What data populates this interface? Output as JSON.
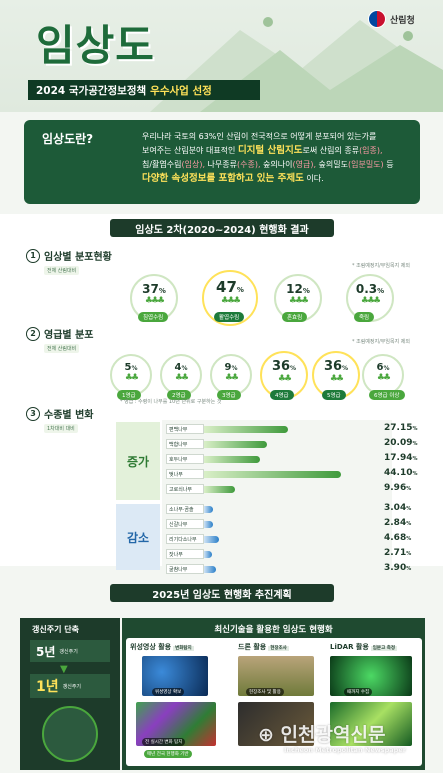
{
  "header": {
    "title": "임상도",
    "agency": "산림청",
    "subtitle_pre": "2024 국가공간정보정책",
    "subtitle_hl": "우수사업 선정"
  },
  "intro": {
    "question": "임상도란?",
    "l1": "우리나라 국토의 63%인 산림이 전국적으로 어떻게 분포되어 있는가를",
    "l2a": "보여주는 산림분야 대표적인",
    "l2b": "디지털 산림지도",
    "l2c": "로써 산림의 종류",
    "l2d": "(임종),",
    "l3a": "침/활엽수림",
    "l3b": "(임상),",
    "l3c": " 나무종류",
    "l3d": "(수종),",
    "l3e": " 숲의나이",
    "l3f": "(영급),",
    "l3g": " 숲의밀도",
    "l3h": "(임분밀도)",
    "l3i": " 등",
    "l4a": "다양한 속성정보를 포함하고 있는 주제도",
    "l4b": "이다."
  },
  "results": {
    "band": "임상도 2차(2020~2024) 현행화 결과"
  },
  "s1": {
    "num": "1",
    "title": "임상별 분포현황",
    "sub": "전체 산림대비",
    "note": "* 조림예정지/무임목지 제외",
    "items": [
      {
        "pct": "37",
        "unit": "%",
        "label": "침엽수림",
        "hi": false
      },
      {
        "pct": "47",
        "unit": "%",
        "label": "활엽수림",
        "hi": true
      },
      {
        "pct": "12",
        "unit": "%",
        "label": "혼효림",
        "hi": false
      },
      {
        "pct": "0.3",
        "unit": "%",
        "label": "죽림",
        "hi": false
      }
    ]
  },
  "s2": {
    "num": "2",
    "title": "영급별 분포",
    "sub": "전체 산림대비",
    "note": "* 조림예정지/무임목지 제외",
    "footnote": "* 영급 : 수령이 나무를 10년 단위로 구분하는 것",
    "items": [
      {
        "pct": "5",
        "unit": "%",
        "label": "1영급",
        "hi": false
      },
      {
        "pct": "4",
        "unit": "%",
        "label": "2영급",
        "hi": false
      },
      {
        "pct": "9",
        "unit": "%",
        "label": "3영급",
        "hi": false
      },
      {
        "pct": "36",
        "unit": "%",
        "label": "4영급",
        "hi": true
      },
      {
        "pct": "36",
        "unit": "%",
        "label": "5영급",
        "hi": true
      },
      {
        "pct": "6",
        "unit": "%",
        "label": "6영급 이상",
        "hi": false
      }
    ]
  },
  "s3": {
    "num": "3",
    "title": "수종별 변화",
    "sub": "1차대비 대비",
    "inc": "증가",
    "dec": "감소",
    "increase": [
      {
        "name": "편백나무",
        "value": 27.15,
        "text": "27.15",
        "unit": "%"
      },
      {
        "name": "백합나무",
        "value": 20.09,
        "text": "20.09",
        "unit": "%"
      },
      {
        "name": "호두나무",
        "value": 17.94,
        "text": "17.94",
        "unit": "%"
      },
      {
        "name": "벚나무",
        "value": 44.1,
        "text": "44.10",
        "unit": "%"
      },
      {
        "name": "고로쇠나무",
        "value": 9.96,
        "text": "9.96",
        "unit": "%"
      }
    ],
    "decrease": [
      {
        "name": "소나무·곰솔",
        "value": 3.04,
        "text": "3.04",
        "unit": "%"
      },
      {
        "name": "신갈나무",
        "value": 2.84,
        "text": "2.84",
        "unit": "%"
      },
      {
        "name": "리기다소나무",
        "value": 4.68,
        "text": "4.68",
        "unit": "%"
      },
      {
        "name": "잣나무",
        "value": 2.71,
        "text": "2.71",
        "unit": "%"
      },
      {
        "name": "굴참나무",
        "value": 3.9,
        "text": "3.90",
        "unit": "%"
      }
    ]
  },
  "plan": {
    "band": "2025년 임상도 현행화 추진계획",
    "cycle_title": "갱신주기 단축",
    "from_year": "5년",
    "from_label": "갱신주기",
    "to_year": "1년",
    "to_label": "갱신주기",
    "tech_title": "최신기술을 활용한 임상도 현행화",
    "tech": [
      {
        "name": "위성영상 활용",
        "tag": "변화탐지",
        "cap1": "위성영상 확보",
        "cap2": "전 실시간 변화 탐지",
        "cap3": "매년 전국 현행화 기반"
      },
      {
        "name": "드론 활용",
        "tag": "현장조사",
        "cap1": "현장조사 및 활용",
        "cap2": "",
        "cap3": ""
      },
      {
        "name": "LiDAR 활용",
        "tag": "임분고 측정",
        "cap1": "때까지 수집",
        "cap2": "",
        "cap3": ""
      }
    ]
  },
  "watermark": {
    "kr": "인천광역신문",
    "en": "Incheon Metropolitan Newspaper"
  },
  "colors": {
    "dark": "#1d3b2a",
    "green": "#4aa73d",
    "blue": "#2367a8",
    "yellow": "#ffe259"
  }
}
